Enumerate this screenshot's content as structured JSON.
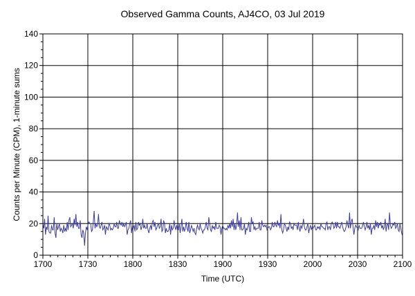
{
  "chart_data": {
    "type": "line",
    "title": "Observed Gamma Counts, AJ4CO, 03 Jul 2019",
    "xlabel": "Time (UTC)",
    "ylabel": "Counts per Minute (CPM), 1-minute sums",
    "xlim": [
      "1700",
      "2100"
    ],
    "ylim": [
      0,
      140
    ],
    "grid": true,
    "x_ticks": [
      "1700",
      "1730",
      "1800",
      "1830",
      "1900",
      "1930",
      "2000",
      "2030",
      "2100"
    ],
    "y_ticks": [
      "0",
      "20",
      "40",
      "60",
      "80",
      "100",
      "120",
      "140"
    ],
    "series": [
      {
        "color": "#3a3aa0",
        "values": [
          20,
          17,
          23,
          13,
          18,
          16,
          25,
          15,
          14,
          14,
          19,
          16,
          16,
          24,
          14,
          11,
          20,
          16,
          18,
          20,
          15,
          17,
          16,
          14,
          19,
          15,
          17,
          15,
          21,
          16,
          22,
          24,
          18,
          19,
          20,
          17,
          23,
          19,
          26,
          18,
          21,
          17,
          17,
          22,
          13,
          11,
          16,
          14,
          6,
          14,
          18,
          16,
          20,
          21,
          20,
          20,
          15,
          16,
          21,
          28,
          17,
          20,
          18,
          19,
          26,
          18,
          17,
          19,
          21,
          16,
          17,
          19,
          13,
          18,
          17,
          16,
          20,
          19,
          16,
          17,
          16,
          17,
          20,
          18,
          18,
          21,
          17,
          17,
          22,
          20,
          19,
          21,
          18,
          20,
          18,
          19,
          21,
          13,
          16,
          17,
          20,
          22,
          14,
          18,
          17,
          19,
          15,
          21,
          16,
          17,
          21,
          19,
          20,
          16,
          18,
          23,
          17,
          19,
          17,
          17,
          20,
          16,
          14,
          17,
          19,
          16,
          21,
          22,
          18,
          21,
          16,
          17,
          19,
          20,
          17,
          18,
          23,
          15,
          16,
          22,
          20,
          14,
          17,
          15,
          15,
          16,
          20,
          13,
          19,
          16,
          17,
          22,
          18,
          16,
          19,
          16,
          16,
          20,
          14,
          18,
          23,
          15,
          18,
          15,
          17,
          21,
          17,
          15,
          21,
          14,
          16,
          19,
          17,
          15,
          17,
          14,
          13,
          17,
          19,
          17,
          16,
          20,
          17,
          16,
          14,
          16,
          16,
          18,
          21,
          17,
          16,
          24,
          20,
          16,
          15,
          19,
          17,
          18,
          16,
          21,
          17,
          17,
          17,
          19,
          18,
          13,
          17,
          19,
          17,
          17,
          16,
          17,
          16,
          19,
          17,
          20,
          17,
          22,
          18,
          23,
          16,
          20,
          16,
          19,
          27,
          18,
          22,
          16,
          24,
          16,
          16,
          17,
          20,
          13,
          17,
          16,
          18,
          21,
          15,
          15,
          24,
          20,
          21,
          16,
          18,
          16,
          17,
          17,
          17,
          21,
          16,
          16,
          22,
          19,
          18,
          19,
          18,
          19,
          16,
          17,
          18,
          18,
          16,
          17,
          21,
          18,
          18,
          21,
          19,
          18,
          22,
          19,
          20,
          17,
          26,
          16,
          14,
          16,
          20,
          19,
          17,
          15,
          18,
          16,
          21,
          20,
          17,
          18,
          16,
          20,
          19,
          19,
          19,
          16,
          21,
          17,
          15,
          19,
          17,
          19,
          23,
          18,
          16,
          16,
          18,
          20,
          14,
          17,
          19,
          16,
          18,
          17,
          18,
          19,
          16,
          16,
          18,
          17,
          18,
          16,
          20,
          18,
          18,
          17,
          17,
          16,
          20,
          21,
          16,
          18,
          18,
          16,
          20,
          21,
          20,
          17,
          18,
          21,
          17,
          21,
          18,
          18,
          17,
          19,
          21,
          18,
          16,
          15,
          16,
          18,
          22,
          19,
          17,
          27,
          17,
          21,
          23,
          18,
          13,
          17,
          19,
          18,
          17,
          16,
          19,
          17,
          17,
          17,
          19,
          21,
          18,
          16,
          18,
          21,
          17,
          19,
          16,
          20,
          13,
          17,
          17,
          19,
          16,
          22,
          18,
          21,
          17,
          20,
          19,
          21,
          17,
          19,
          16,
          18,
          23,
          15,
          19,
          20,
          16,
          27,
          19,
          17,
          18,
          20,
          19,
          21,
          17,
          18,
          20,
          16,
          15,
          20,
          17,
          14,
          12
        ]
      }
    ]
  }
}
